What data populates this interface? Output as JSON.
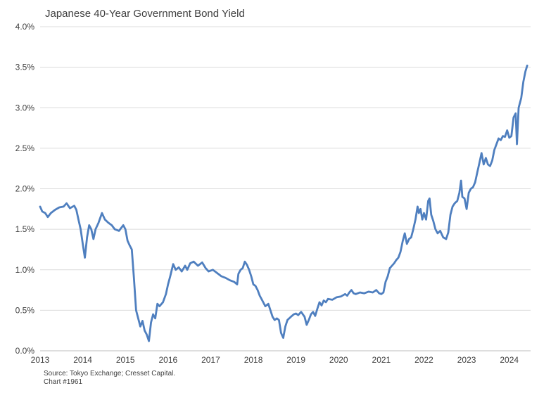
{
  "chart_data": {
    "type": "line",
    "title": "Japanese 40-Year Government Bond Yield",
    "xlabel": "",
    "ylabel": "",
    "xlim": [
      2013.0,
      2024.5
    ],
    "ylim": [
      0.0,
      4.0
    ],
    "y_tick_labels": [
      "0.0%",
      "0.5%",
      "1.0%",
      "1.5%",
      "2.0%",
      "2.5%",
      "3.0%",
      "3.5%",
      "4.0%"
    ],
    "x_tick_labels": [
      "2013",
      "2014",
      "2015",
      "2016",
      "2017",
      "2018",
      "2019",
      "2020",
      "2021",
      "2022",
      "2023",
      "2024"
    ],
    "grid": "horizontal",
    "color": "#4f7fbf",
    "series": [
      {
        "values": [
          [
            2013.0,
            1.78
          ],
          [
            2013.05,
            1.72
          ],
          [
            2013.12,
            1.7
          ],
          [
            2013.18,
            1.65
          ],
          [
            2013.25,
            1.7
          ],
          [
            2013.35,
            1.74
          ],
          [
            2013.45,
            1.77
          ],
          [
            2013.55,
            1.78
          ],
          [
            2013.62,
            1.82
          ],
          [
            2013.7,
            1.76
          ],
          [
            2013.8,
            1.79
          ],
          [
            2013.85,
            1.74
          ],
          [
            2013.9,
            1.62
          ],
          [
            2013.95,
            1.5
          ],
          [
            2014.0,
            1.32
          ],
          [
            2014.05,
            1.15
          ],
          [
            2014.1,
            1.4
          ],
          [
            2014.15,
            1.55
          ],
          [
            2014.2,
            1.5
          ],
          [
            2014.25,
            1.38
          ],
          [
            2014.3,
            1.5
          ],
          [
            2014.37,
            1.58
          ],
          [
            2014.45,
            1.7
          ],
          [
            2014.52,
            1.62
          ],
          [
            2014.6,
            1.58
          ],
          [
            2014.68,
            1.55
          ],
          [
            2014.75,
            1.5
          ],
          [
            2014.85,
            1.48
          ],
          [
            2014.95,
            1.55
          ],
          [
            2015.0,
            1.5
          ],
          [
            2015.05,
            1.36
          ],
          [
            2015.1,
            1.3
          ],
          [
            2015.15,
            1.25
          ],
          [
            2015.2,
            0.9
          ],
          [
            2015.25,
            0.5
          ],
          [
            2015.3,
            0.4
          ],
          [
            2015.35,
            0.3
          ],
          [
            2015.4,
            0.37
          ],
          [
            2015.45,
            0.25
          ],
          [
            2015.5,
            0.2
          ],
          [
            2015.55,
            0.12
          ],
          [
            2015.6,
            0.35
          ],
          [
            2015.65,
            0.45
          ],
          [
            2015.7,
            0.4
          ],
          [
            2015.75,
            0.58
          ],
          [
            2015.8,
            0.55
          ],
          [
            2015.88,
            0.6
          ],
          [
            2015.95,
            0.7
          ],
          [
            2016.0,
            0.82
          ],
          [
            2016.05,
            0.92
          ],
          [
            2016.12,
            1.07
          ],
          [
            2016.18,
            1.0
          ],
          [
            2016.25,
            1.03
          ],
          [
            2016.32,
            0.98
          ],
          [
            2016.4,
            1.05
          ],
          [
            2016.45,
            1.0
          ],
          [
            2016.52,
            1.08
          ],
          [
            2016.6,
            1.1
          ],
          [
            2016.7,
            1.05
          ],
          [
            2016.8,
            1.09
          ],
          [
            2016.88,
            1.02
          ],
          [
            2016.95,
            0.98
          ],
          [
            2017.05,
            1.0
          ],
          [
            2017.15,
            0.96
          ],
          [
            2017.25,
            0.92
          ],
          [
            2017.35,
            0.9
          ],
          [
            2017.45,
            0.87
          ],
          [
            2017.55,
            0.85
          ],
          [
            2017.62,
            0.82
          ],
          [
            2017.65,
            0.95
          ],
          [
            2017.7,
            1.0
          ],
          [
            2017.75,
            1.02
          ],
          [
            2017.8,
            1.1
          ],
          [
            2017.85,
            1.06
          ],
          [
            2017.9,
            1.0
          ],
          [
            2017.95,
            0.92
          ],
          [
            2018.0,
            0.82
          ],
          [
            2018.05,
            0.8
          ],
          [
            2018.1,
            0.75
          ],
          [
            2018.15,
            0.68
          ],
          [
            2018.2,
            0.63
          ],
          [
            2018.28,
            0.55
          ],
          [
            2018.35,
            0.58
          ],
          [
            2018.4,
            0.5
          ],
          [
            2018.45,
            0.42
          ],
          [
            2018.5,
            0.38
          ],
          [
            2018.55,
            0.4
          ],
          [
            2018.6,
            0.38
          ],
          [
            2018.65,
            0.22
          ],
          [
            2018.7,
            0.16
          ],
          [
            2018.75,
            0.3
          ],
          [
            2018.8,
            0.38
          ],
          [
            2018.88,
            0.42
          ],
          [
            2018.95,
            0.45
          ],
          [
            2019.0,
            0.46
          ],
          [
            2019.05,
            0.44
          ],
          [
            2019.12,
            0.48
          ],
          [
            2019.2,
            0.42
          ],
          [
            2019.25,
            0.32
          ],
          [
            2019.3,
            0.38
          ],
          [
            2019.35,
            0.45
          ],
          [
            2019.4,
            0.48
          ],
          [
            2019.45,
            0.43
          ],
          [
            2019.5,
            0.52
          ],
          [
            2019.55,
            0.6
          ],
          [
            2019.6,
            0.56
          ],
          [
            2019.65,
            0.62
          ],
          [
            2019.7,
            0.6
          ],
          [
            2019.75,
            0.64
          ],
          [
            2019.85,
            0.63
          ],
          [
            2019.95,
            0.66
          ],
          [
            2020.05,
            0.67
          ],
          [
            2020.15,
            0.7
          ],
          [
            2020.2,
            0.68
          ],
          [
            2020.25,
            0.72
          ],
          [
            2020.3,
            0.75
          ],
          [
            2020.35,
            0.71
          ],
          [
            2020.4,
            0.7
          ],
          [
            2020.5,
            0.72
          ],
          [
            2020.6,
            0.71
          ],
          [
            2020.7,
            0.73
          ],
          [
            2020.8,
            0.72
          ],
          [
            2020.88,
            0.75
          ],
          [
            2020.95,
            0.71
          ],
          [
            2021.0,
            0.7
          ],
          [
            2021.05,
            0.72
          ],
          [
            2021.1,
            0.85
          ],
          [
            2021.15,
            0.92
          ],
          [
            2021.2,
            1.02
          ],
          [
            2021.25,
            1.05
          ],
          [
            2021.3,
            1.08
          ],
          [
            2021.35,
            1.12
          ],
          [
            2021.4,
            1.15
          ],
          [
            2021.45,
            1.22
          ],
          [
            2021.5,
            1.35
          ],
          [
            2021.55,
            1.45
          ],
          [
            2021.6,
            1.32
          ],
          [
            2021.65,
            1.38
          ],
          [
            2021.7,
            1.4
          ],
          [
            2021.75,
            1.5
          ],
          [
            2021.8,
            1.62
          ],
          [
            2021.85,
            1.78
          ],
          [
            2021.88,
            1.7
          ],
          [
            2021.92,
            1.75
          ],
          [
            2021.96,
            1.62
          ],
          [
            2022.0,
            1.7
          ],
          [
            2022.05,
            1.62
          ],
          [
            2022.1,
            1.85
          ],
          [
            2022.13,
            1.88
          ],
          [
            2022.17,
            1.68
          ],
          [
            2022.22,
            1.6
          ],
          [
            2022.27,
            1.5
          ],
          [
            2022.32,
            1.45
          ],
          [
            2022.38,
            1.48
          ],
          [
            2022.45,
            1.4
          ],
          [
            2022.52,
            1.38
          ],
          [
            2022.57,
            1.46
          ],
          [
            2022.62,
            1.68
          ],
          [
            2022.67,
            1.78
          ],
          [
            2022.72,
            1.82
          ],
          [
            2022.78,
            1.85
          ],
          [
            2022.83,
            1.95
          ],
          [
            2022.87,
            2.1
          ],
          [
            2022.9,
            1.9
          ],
          [
            2022.95,
            1.88
          ],
          [
            2023.0,
            1.75
          ],
          [
            2023.05,
            1.95
          ],
          [
            2023.1,
            2.0
          ],
          [
            2023.15,
            2.02
          ],
          [
            2023.2,
            2.08
          ],
          [
            2023.25,
            2.2
          ],
          [
            2023.3,
            2.32
          ],
          [
            2023.35,
            2.44
          ],
          [
            2023.4,
            2.3
          ],
          [
            2023.45,
            2.38
          ],
          [
            2023.5,
            2.3
          ],
          [
            2023.55,
            2.28
          ],
          [
            2023.6,
            2.35
          ],
          [
            2023.65,
            2.48
          ],
          [
            2023.7,
            2.55
          ],
          [
            2023.75,
            2.62
          ],
          [
            2023.8,
            2.6
          ],
          [
            2023.85,
            2.65
          ],
          [
            2023.9,
            2.64
          ],
          [
            2023.95,
            2.72
          ],
          [
            2024.0,
            2.63
          ],
          [
            2024.05,
            2.65
          ],
          [
            2024.1,
            2.88
          ],
          [
            2024.15,
            2.93
          ],
          [
            2024.18,
            2.55
          ],
          [
            2024.22,
            3.0
          ],
          [
            2024.28,
            3.12
          ],
          [
            2024.33,
            3.32
          ],
          [
            2024.38,
            3.45
          ],
          [
            2024.42,
            3.52
          ]
        ]
      }
    ]
  },
  "footer": {
    "source": "Source: Tokyo Exchange; Cresset Capital.",
    "chart_number": "Chart #1961"
  }
}
